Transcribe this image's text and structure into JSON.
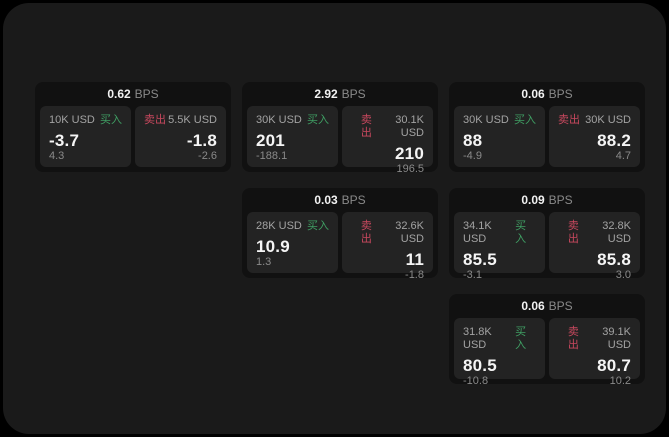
{
  "labels": {
    "bps_unit": "BPS",
    "buy": "买入",
    "sell": "卖出"
  },
  "colors": {
    "window_background": "#1a1a1a",
    "card_background": "#111111",
    "panel_background": "#232323",
    "buy_accent": "#3f9e63",
    "sell_accent": "#c8485e"
  },
  "cards": [
    {
      "bps": "0.62",
      "row": 1,
      "col": 1,
      "buy": {
        "notional": "10K USD",
        "price": "-3.7",
        "secondary": "4.3"
      },
      "sell": {
        "notional": "5.5K USD",
        "price": "-1.8",
        "secondary": "-2.6"
      }
    },
    {
      "bps": "2.92",
      "row": 1,
      "col": 2,
      "buy": {
        "notional": "30K USD",
        "price": "201",
        "secondary": "-188.1"
      },
      "sell": {
        "notional": "30.1K USD",
        "price": "210",
        "secondary": "196.5"
      }
    },
    {
      "bps": "0.06",
      "row": 1,
      "col": 3,
      "buy": {
        "notional": "30K USD",
        "price": "88",
        "secondary": "-4.9"
      },
      "sell": {
        "notional": "30K USD",
        "price": "88.2",
        "secondary": "4.7"
      }
    },
    {
      "bps": "0.03",
      "row": 2,
      "col": 2,
      "buy": {
        "notional": "28K USD",
        "price": "10.9",
        "secondary": "1.3"
      },
      "sell": {
        "notional": "32.6K USD",
        "price": "11",
        "secondary": "-1.8"
      }
    },
    {
      "bps": "0.09",
      "row": 2,
      "col": 3,
      "buy": {
        "notional": "34.1K USD",
        "price": "85.5",
        "secondary": "-3.1"
      },
      "sell": {
        "notional": "32.8K USD",
        "price": "85.8",
        "secondary": "3.0"
      }
    },
    {
      "bps": "0.06",
      "row": 3,
      "col": 3,
      "buy": {
        "notional": "31.8K USD",
        "price": "80.5",
        "secondary": "-10.8"
      },
      "sell": {
        "notional": "39.1K USD",
        "price": "80.7",
        "secondary": "10.2"
      }
    }
  ]
}
